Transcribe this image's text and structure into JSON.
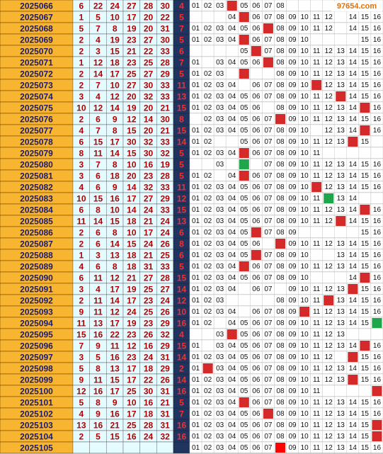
{
  "watermark": "97654.com",
  "rows": [
    {
      "issue": "2025066",
      "reds": [
        6,
        22,
        24,
        27,
        28,
        30
      ],
      "blue": 4,
      "hit": 4,
      "hit_color": "#d42a2a",
      "trend": [
        "01",
        "02",
        "03",
        null,
        "05",
        "06",
        "07",
        "08",
        null,
        null,
        null,
        null,
        null,
        null,
        null,
        null
      ]
    },
    {
      "issue": "2025067",
      "reds": [
        1,
        5,
        10,
        17,
        20,
        22
      ],
      "blue": 5,
      "hit": 5,
      "hit_color": "#d42a2a",
      "trend": [
        null,
        null,
        null,
        "04",
        null,
        "06",
        "07",
        "08",
        "09",
        "10",
        "11",
        "12",
        null,
        "14",
        "15",
        "16"
      ]
    },
    {
      "issue": "2025068",
      "reds": [
        5,
        7,
        8,
        19,
        20,
        31
      ],
      "blue": 7,
      "hit": 7,
      "hit_color": "#d42a2a",
      "trend": [
        "01",
        "02",
        "03",
        "04",
        "05",
        "06",
        null,
        "08",
        "09",
        "10",
        "11",
        "12",
        null,
        "14",
        "15",
        "16"
      ]
    },
    {
      "issue": "2025069",
      "reds": [
        2,
        4,
        19,
        23,
        27,
        30
      ],
      "blue": 5,
      "hit": 5,
      "hit_color": "#d42a2a",
      "trend": [
        "01",
        "02",
        "03",
        "04",
        null,
        "06",
        "07",
        "08",
        "09",
        "10",
        null,
        null,
        null,
        null,
        "15",
        "16"
      ]
    },
    {
      "issue": "2025070",
      "reds": [
        2,
        3,
        15,
        21,
        22,
        33
      ],
      "blue": 6,
      "hit": 6,
      "hit_color": "#d42a2a",
      "trend": [
        null,
        null,
        null,
        null,
        "05",
        null,
        "07",
        "08",
        "09",
        "10",
        "11",
        "12",
        "13",
        "14",
        "15",
        "16"
      ]
    },
    {
      "issue": "2025071",
      "reds": [
        1,
        12,
        18,
        23,
        25,
        28
      ],
      "blue": 7,
      "hit": 7,
      "hit_color": "#d42a2a",
      "trend": [
        "01",
        null,
        "03",
        "04",
        "05",
        "06",
        null,
        "08",
        "09",
        "10",
        "11",
        "12",
        "13",
        "14",
        "15",
        "16"
      ]
    },
    {
      "issue": "2025072",
      "reds": [
        2,
        14,
        17,
        25,
        27,
        29
      ],
      "blue": 5,
      "hit": 5,
      "hit_color": "#d42a2a",
      "trend": [
        "01",
        "02",
        "03",
        null,
        null,
        null,
        null,
        "08",
        "09",
        "10",
        "11",
        "12",
        "13",
        "14",
        "15",
        "16"
      ]
    },
    {
      "issue": "2025073",
      "reds": [
        2,
        7,
        10,
        27,
        30,
        33
      ],
      "blue": 11,
      "hit": 11,
      "hit_color": "#d42a2a",
      "trend": [
        "01",
        "02",
        "03",
        "04",
        null,
        "06",
        "07",
        "08",
        "09",
        "10",
        null,
        "12",
        "13",
        "14",
        "15",
        "16"
      ]
    },
    {
      "issue": "2025074",
      "reds": [
        3,
        4,
        12,
        20,
        32,
        33
      ],
      "blue": 13,
      "hit": 13,
      "hit_color": "#d42a2a",
      "trend": [
        "01",
        "02",
        "03",
        "04",
        "05",
        "06",
        "07",
        "08",
        "09",
        "10",
        "11",
        "12",
        null,
        "14",
        "15",
        "16"
      ]
    },
    {
      "issue": "2025075",
      "reds": [
        10,
        12,
        14,
        19,
        20,
        21
      ],
      "blue": 15,
      "hit": 15,
      "hit_color": "#d42a2a",
      "trend": [
        "01",
        "02",
        "03",
        "04",
        "05",
        "06",
        null,
        "08",
        "09",
        "10",
        "11",
        "12",
        "13",
        "14",
        null,
        "16"
      ]
    },
    {
      "issue": "2025076",
      "reds": [
        2,
        6,
        9,
        12,
        14,
        30
      ],
      "blue": 8,
      "hit": 8,
      "hit_color": "#d42a2a",
      "trend": [
        null,
        "02",
        "03",
        "04",
        "05",
        "06",
        "07",
        null,
        "09",
        "10",
        "11",
        "12",
        "13",
        "14",
        "15",
        "16"
      ]
    },
    {
      "issue": "2025077",
      "reds": [
        4,
        7,
        8,
        15,
        20,
        21
      ],
      "blue": 15,
      "hit": 15,
      "hit_color": "#d42a2a",
      "trend": [
        "01",
        "02",
        "03",
        "04",
        "05",
        "06",
        "07",
        "08",
        "09",
        "10",
        null,
        "12",
        "13",
        "14",
        null,
        "16"
      ]
    },
    {
      "issue": "2025078",
      "reds": [
        6,
        15,
        17,
        30,
        32,
        33
      ],
      "blue": 14,
      "hit": 14,
      "hit_color": "#d42a2a",
      "trend": [
        "01",
        "02",
        null,
        null,
        "05",
        "06",
        "07",
        "08",
        "09",
        "10",
        "11",
        "12",
        "13",
        null,
        "15",
        null
      ]
    },
    {
      "issue": "2025079",
      "reds": [
        8,
        11,
        14,
        15,
        30,
        32
      ],
      "blue": 5,
      "hit": 5,
      "hit_color": "#d42a2a",
      "trend": [
        "01",
        "02",
        "03",
        "04",
        null,
        "06",
        "07",
        "08",
        "09",
        "10",
        "11",
        null,
        null,
        null,
        null,
        null
      ]
    },
    {
      "issue": "2025080",
      "reds": [
        3,
        7,
        8,
        10,
        16,
        19
      ],
      "blue": 5,
      "hit": 5,
      "hit_color": "#1fa64a",
      "trend": [
        null,
        null,
        "03",
        null,
        null,
        null,
        "07",
        "08",
        "09",
        "10",
        "11",
        "12",
        "13",
        "14",
        "15",
        "16"
      ]
    },
    {
      "issue": "2025081",
      "reds": [
        3,
        6,
        18,
        20,
        23,
        28
      ],
      "blue": 5,
      "hit": 5,
      "hit_color": "#d42a2a",
      "trend": [
        "01",
        "02",
        null,
        "04",
        null,
        "06",
        "07",
        "08",
        "09",
        "10",
        "11",
        "12",
        "13",
        "14",
        "15",
        "16"
      ]
    },
    {
      "issue": "2025082",
      "reds": [
        4,
        6,
        9,
        14,
        32,
        33
      ],
      "blue": 11,
      "hit": 11,
      "hit_color": "#d42a2a",
      "trend": [
        "01",
        "02",
        "03",
        "04",
        "05",
        "06",
        "07",
        "08",
        "09",
        "10",
        null,
        "12",
        "13",
        "14",
        "15",
        "16"
      ]
    },
    {
      "issue": "2025083",
      "reds": [
        10,
        15,
        16,
        17,
        27,
        29
      ],
      "blue": 12,
      "hit": 12,
      "hit_color": "#1fa64a",
      "trend": [
        "01",
        "02",
        "03",
        "04",
        "05",
        "06",
        "07",
        "08",
        "09",
        "10",
        "11",
        null,
        "13",
        "14",
        null,
        null
      ]
    },
    {
      "issue": "2025084",
      "reds": [
        6,
        8,
        10,
        14,
        24,
        33
      ],
      "blue": 15,
      "hit": 15,
      "hit_color": "#d42a2a",
      "trend": [
        "01",
        "02",
        "03",
        "04",
        "05",
        "06",
        "07",
        "08",
        "09",
        "10",
        "11",
        "12",
        "13",
        "14",
        null,
        "16"
      ]
    },
    {
      "issue": "2025085",
      "reds": [
        11,
        14,
        15,
        18,
        21,
        24
      ],
      "blue": 13,
      "hit": 13,
      "hit_color": "#d42a2a",
      "trend": [
        "01",
        "02",
        "03",
        "04",
        "05",
        "06",
        "07",
        "08",
        "09",
        "10",
        "11",
        "12",
        null,
        "14",
        "15",
        "16"
      ]
    },
    {
      "issue": "2025086",
      "reds": [
        2,
        6,
        8,
        10,
        17,
        24
      ],
      "blue": 6,
      "hit": 6,
      "hit_color": "#d42a2a",
      "trend": [
        "01",
        "02",
        "03",
        "04",
        "05",
        null,
        "07",
        "08",
        "09",
        null,
        null,
        null,
        null,
        null,
        "15",
        "16"
      ]
    },
    {
      "issue": "2025087",
      "reds": [
        2,
        6,
        14,
        15,
        24,
        26
      ],
      "blue": 8,
      "hit": 8,
      "hit_color": "#d42a2a",
      "trend": [
        "01",
        "02",
        "03",
        "04",
        "05",
        "06",
        null,
        null,
        "09",
        "10",
        "11",
        "12",
        "13",
        "14",
        "15",
        "16"
      ]
    },
    {
      "issue": "2025088",
      "reds": [
        1,
        3,
        13,
        18,
        21,
        25
      ],
      "blue": 6,
      "hit": 6,
      "hit_color": "#d42a2a",
      "trend": [
        "01",
        "02",
        "03",
        "04",
        "05",
        null,
        "07",
        "08",
        "09",
        "10",
        null,
        null,
        "13",
        "14",
        "15",
        "16"
      ]
    },
    {
      "issue": "2025089",
      "reds": [
        4,
        6,
        8,
        18,
        31,
        33
      ],
      "blue": 5,
      "hit": 5,
      "hit_color": "#d42a2a",
      "trend": [
        "01",
        "02",
        "03",
        "04",
        null,
        "06",
        "07",
        "08",
        "09",
        "10",
        "11",
        "12",
        "13",
        "14",
        "15",
        "16"
      ]
    },
    {
      "issue": "2025090",
      "reds": [
        6,
        11,
        12,
        21,
        27,
        28
      ],
      "blue": 15,
      "hit": 15,
      "hit_color": "#d42a2a",
      "trend": [
        "01",
        "02",
        "03",
        "04",
        "05",
        "06",
        "07",
        "08",
        "09",
        "10",
        null,
        null,
        null,
        "14",
        null,
        "16"
      ]
    },
    {
      "issue": "2025091",
      "reds": [
        3,
        4,
        17,
        19,
        25,
        27
      ],
      "blue": 14,
      "hit": 14,
      "hit_color": "#d42a2a",
      "trend": [
        "01",
        "02",
        "03",
        "04",
        null,
        "06",
        "07",
        null,
        "09",
        "10",
        "11",
        "12",
        "13",
        null,
        "15",
        "16"
      ]
    },
    {
      "issue": "2025092",
      "reds": [
        2,
        11,
        14,
        17,
        23,
        24
      ],
      "blue": 12,
      "hit": 12,
      "hit_color": "#d42a2a",
      "trend": [
        "01",
        "02",
        "03",
        null,
        null,
        null,
        null,
        "08",
        "09",
        "10",
        "11",
        null,
        "13",
        "14",
        "15",
        "16"
      ]
    },
    {
      "issue": "2025093",
      "reds": [
        9,
        11,
        12,
        24,
        25,
        26
      ],
      "blue": 10,
      "hit": 10,
      "hit_color": "#d42a2a",
      "trend": [
        "01",
        "02",
        "03",
        "04",
        null,
        "06",
        "07",
        "08",
        "09",
        null,
        "11",
        "12",
        "13",
        "14",
        "15",
        "16"
      ]
    },
    {
      "issue": "2025094",
      "reds": [
        11,
        13,
        17,
        19,
        23,
        29
      ],
      "blue": 16,
      "hit": 16,
      "hit_color": "#1fa64a",
      "trend": [
        "01",
        "02",
        null,
        "04",
        "05",
        "06",
        "07",
        "08",
        "09",
        "10",
        "11",
        "12",
        "13",
        "14",
        "15",
        null
      ]
    },
    {
      "issue": "2025095",
      "reds": [
        15,
        16,
        22,
        23,
        26,
        32
      ],
      "blue": 4,
      "hit": 4,
      "hit_color": "#d42a2a",
      "trend": [
        null,
        null,
        "03",
        null,
        "05",
        "06",
        "07",
        "08",
        "09",
        "10",
        "11",
        "12",
        "13",
        null,
        null,
        null
      ]
    },
    {
      "issue": "2025096",
      "reds": [
        7,
        9,
        11,
        12,
        16,
        29
      ],
      "blue": 15,
      "hit": 15,
      "hit_color": "#d42a2a",
      "trend": [
        "01",
        null,
        "03",
        "04",
        "05",
        "06",
        "07",
        "08",
        "09",
        "10",
        "11",
        "12",
        "13",
        "14",
        null,
        "16"
      ]
    },
    {
      "issue": "2025097",
      "reds": [
        3,
        5,
        16,
        23,
        24,
        31
      ],
      "blue": 14,
      "hit": 14,
      "hit_color": "#d42a2a",
      "trend": [
        "01",
        "02",
        "03",
        "04",
        "05",
        "06",
        "07",
        "08",
        "09",
        "10",
        "11",
        "12",
        null,
        null,
        "15",
        "16"
      ]
    },
    {
      "issue": "2025098",
      "reds": [
        5,
        8,
        13,
        17,
        18,
        29
      ],
      "blue": 2,
      "hit": 2,
      "hit_color": "#d42a2a",
      "trend": [
        "01",
        null,
        "03",
        "04",
        "05",
        "06",
        "07",
        "08",
        "09",
        "10",
        "11",
        "12",
        "13",
        "14",
        "15",
        "16"
      ]
    },
    {
      "issue": "2025099",
      "reds": [
        9,
        11,
        15,
        17,
        22,
        26
      ],
      "blue": 14,
      "hit": 14,
      "hit_color": "#d42a2a",
      "trend": [
        "01",
        "02",
        "03",
        "04",
        "05",
        "06",
        "07",
        "08",
        "09",
        "10",
        "11",
        "12",
        "13",
        null,
        "15",
        "16"
      ]
    },
    {
      "issue": "2025100",
      "reds": [
        12,
        16,
        17,
        25,
        30,
        31
      ],
      "blue": 16,
      "hit": 16,
      "hit_color": "#d42a2a",
      "trend": [
        "01",
        "02",
        "03",
        "04",
        "05",
        "06",
        "07",
        "08",
        "09",
        "10",
        "11",
        null,
        null,
        null,
        null,
        null
      ]
    },
    {
      "issue": "2025101",
      "reds": [
        5,
        8,
        9,
        10,
        16,
        21
      ],
      "blue": 5,
      "hit": 5,
      "hit_color": "#d42a2a",
      "trend": [
        "01",
        "02",
        "03",
        "04",
        null,
        "06",
        "07",
        "08",
        "09",
        "10",
        "11",
        "12",
        "13",
        "14",
        "15",
        "16"
      ]
    },
    {
      "issue": "2025102",
      "reds": [
        4,
        9,
        16,
        17,
        18,
        31
      ],
      "blue": 7,
      "hit": 7,
      "hit_color": "#d42a2a",
      "trend": [
        "01",
        "02",
        "03",
        "04",
        "05",
        "06",
        null,
        "08",
        "09",
        "10",
        "11",
        "12",
        "13",
        "14",
        "15",
        "16"
      ]
    },
    {
      "issue": "2025103",
      "reds": [
        13,
        16,
        21,
        25,
        28,
        31
      ],
      "blue": 16,
      "hit": 16,
      "hit_color": "#d42a2a",
      "trend": [
        "01",
        "02",
        "03",
        "04",
        "05",
        "06",
        "07",
        "08",
        "09",
        "10",
        "11",
        "12",
        "13",
        "14",
        "15",
        null
      ]
    },
    {
      "issue": "2025104",
      "reds": [
        2,
        5,
        15,
        16,
        24,
        32
      ],
      "blue": 16,
      "hit": 16,
      "hit_color": "#d42a2a",
      "trend": [
        "01",
        "02",
        "03",
        "04",
        "05",
        "06",
        "07",
        "08",
        "09",
        "10",
        "11",
        "12",
        "13",
        "14",
        "15",
        null
      ]
    },
    {
      "issue": "2025105",
      "reds": [],
      "blue": null,
      "hit": 8,
      "hit_color": "#ff0000",
      "trend": [
        "01",
        "02",
        "03",
        "04",
        "05",
        "06",
        "07",
        null,
        "09",
        "10",
        "11",
        "12",
        "13",
        "14",
        "15",
        "16"
      ]
    }
  ]
}
